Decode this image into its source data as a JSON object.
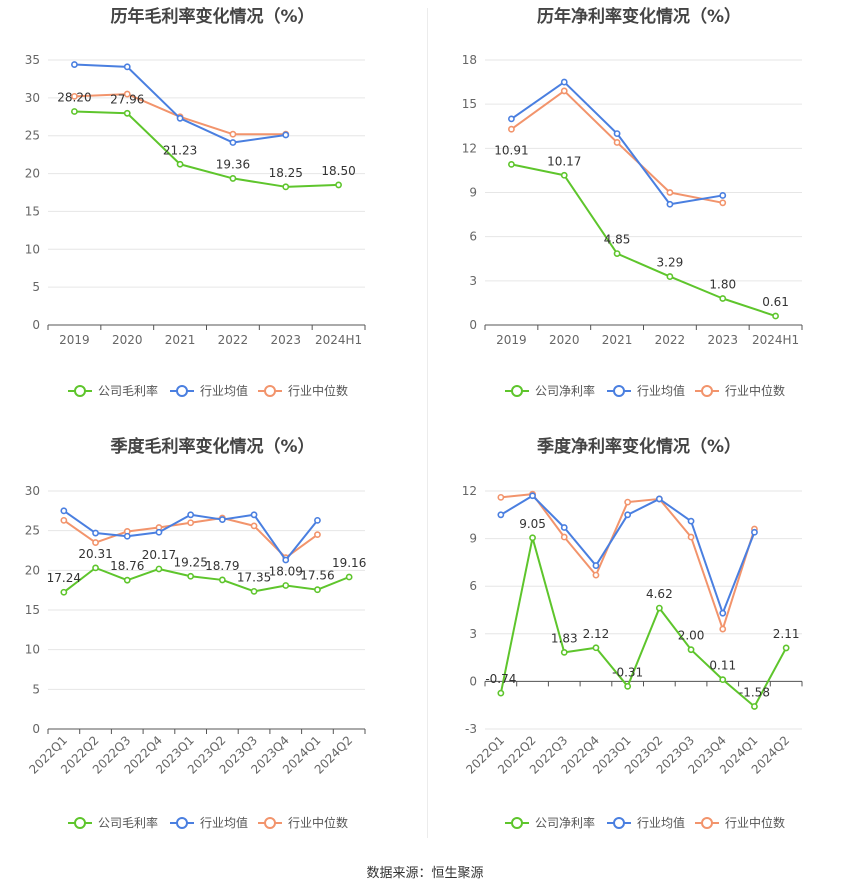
{
  "source": "数据来源：恒生聚源",
  "colors": {
    "company": "#5ec52c",
    "industry_avg": "#4a7fe0",
    "industry_median": "#f2946c"
  },
  "chart_data": [
    {
      "type": "line",
      "title": "历年毛利率变化情况（%）",
      "categories": [
        "2019",
        "2020",
        "2021",
        "2022",
        "2023",
        "2024H1"
      ],
      "ylim": [
        0,
        35
      ],
      "yticks": [
        0,
        5,
        10,
        15,
        20,
        25,
        30,
        35
      ],
      "legend": "bottom",
      "series": [
        {
          "name": "公司毛利率",
          "values": [
            28.2,
            27.96,
            21.23,
            19.36,
            18.25,
            18.5
          ],
          "labels": [
            "28.20",
            "27.96",
            "21.23",
            "19.36",
            "18.25",
            "18.50"
          ]
        },
        {
          "name": "行业均值",
          "values": [
            34.4,
            34.1,
            27.3,
            24.1,
            25.1,
            null
          ]
        },
        {
          "name": "行业中位数",
          "values": [
            30.2,
            30.5,
            27.5,
            25.2,
            25.2,
            null
          ]
        }
      ]
    },
    {
      "type": "line",
      "title": "历年净利率变化情况（%）",
      "categories": [
        "2019",
        "2020",
        "2021",
        "2022",
        "2023",
        "2024H1"
      ],
      "ylim": [
        0,
        18
      ],
      "yticks": [
        0,
        3,
        6,
        9,
        12,
        15,
        18
      ],
      "legend": "bottom",
      "series": [
        {
          "name": "公司净利率",
          "values": [
            10.91,
            10.17,
            4.85,
            3.29,
            1.8,
            0.61
          ],
          "labels": [
            "10.91",
            "10.17",
            "4.85",
            "3.29",
            "1.80",
            "0.61"
          ]
        },
        {
          "name": "行业均值",
          "values": [
            14.0,
            16.5,
            13.0,
            8.2,
            8.8,
            null
          ]
        },
        {
          "name": "行业中位数",
          "values": [
            13.3,
            15.9,
            12.4,
            9.0,
            8.3,
            null
          ]
        }
      ]
    },
    {
      "type": "line",
      "title": "季度毛利率变化情况（%）",
      "categories": [
        "2022Q1",
        "2022Q2",
        "2022Q3",
        "2022Q4",
        "2023Q1",
        "2023Q2",
        "2023Q3",
        "2023Q4",
        "2024Q1",
        "2024Q2"
      ],
      "ylim": [
        0,
        30
      ],
      "yticks": [
        0,
        5,
        10,
        15,
        20,
        25,
        30
      ],
      "legend": "bottom",
      "series": [
        {
          "name": "公司毛利率",
          "values": [
            17.24,
            20.31,
            18.76,
            20.17,
            19.25,
            18.79,
            17.35,
            18.09,
            17.56,
            19.16
          ],
          "labels": [
            "17.24",
            "20.31",
            "18.76",
            "20.17",
            "19.25",
            "18.79",
            "17.35",
            "18.09",
            "17.56",
            "19.16"
          ]
        },
        {
          "name": "行业均值",
          "values": [
            27.5,
            24.7,
            24.3,
            24.8,
            27.0,
            26.4,
            27.0,
            21.3,
            26.3,
            null
          ]
        },
        {
          "name": "行业中位数",
          "values": [
            26.3,
            23.5,
            24.9,
            25.4,
            26.0,
            26.6,
            25.6,
            21.6,
            24.5,
            null
          ]
        }
      ]
    },
    {
      "type": "line",
      "title": "季度净利率变化情况（%）",
      "categories": [
        "2022Q1",
        "2022Q2",
        "2022Q3",
        "2022Q4",
        "2023Q1",
        "2023Q2",
        "2023Q3",
        "2023Q4",
        "2024Q1",
        "2024Q2"
      ],
      "ylim": [
        -3,
        12
      ],
      "yticks": [
        -3,
        0,
        3,
        6,
        9,
        12
      ],
      "legend": "bottom",
      "series": [
        {
          "name": "公司净利率",
          "values": [
            -0.74,
            9.05,
            1.83,
            2.12,
            -0.31,
            4.62,
            2.0,
            0.11,
            -1.58,
            2.11
          ],
          "labels": [
            "-0.74",
            "9.05",
            "1.83",
            "2.12",
            "-0.31",
            "4.62",
            "2.00",
            "0.11",
            "-1.58",
            "2.11"
          ]
        },
        {
          "name": "行业均值",
          "values": [
            10.5,
            11.7,
            9.7,
            7.3,
            10.5,
            11.5,
            10.1,
            4.3,
            9.4,
            null
          ]
        },
        {
          "name": "行业中位数",
          "values": [
            11.6,
            11.8,
            9.1,
            6.7,
            11.3,
            11.5,
            9.1,
            3.3,
            9.6,
            null
          ]
        }
      ]
    }
  ]
}
